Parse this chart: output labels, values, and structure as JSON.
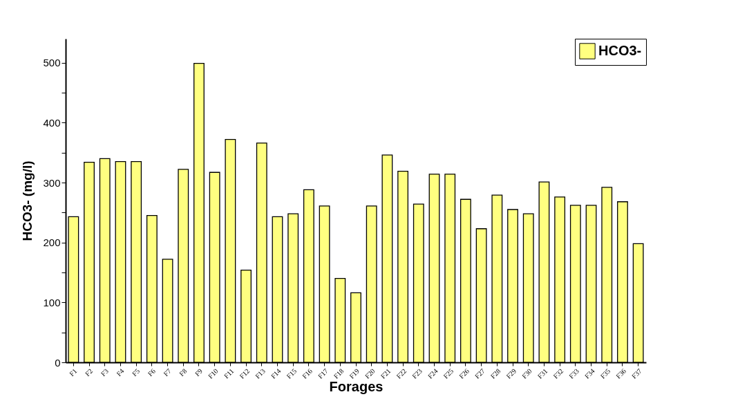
{
  "chart_data": {
    "type": "bar",
    "xlabel": "Forages",
    "ylabel": "HCO3- (mg/l)",
    "categories": [
      "F1",
      "F2",
      "F3",
      "F4",
      "F5",
      "F6",
      "F7",
      "F8",
      "F9",
      "F10",
      "F11",
      "F12",
      "F13",
      "F14",
      "F15",
      "F16",
      "F17",
      "F18",
      "F19",
      "F20",
      "F21",
      "F22",
      "F23",
      "F24",
      "F25",
      "F26",
      "F27",
      "F28",
      "F29",
      "F30",
      "F31",
      "F32",
      "F33",
      "F34",
      "F35",
      "F36",
      "F37"
    ],
    "series": [
      {
        "name": "HCO3-",
        "color": "#ffff80",
        "values": [
          243,
          334,
          340,
          335,
          335,
          245,
          172,
          322,
          499,
          317,
          372,
          154,
          366,
          243,
          248,
          288,
          261,
          140,
          116,
          261,
          346,
          319,
          264,
          314,
          314,
          272,
          223,
          279,
          255,
          248,
          301,
          276,
          262,
          262,
          292,
          268,
          198
        ]
      }
    ],
    "ylim": [
      0,
      540
    ],
    "yticks": [
      0,
      {
        "value": 50,
        "label": null
      },
      100,
      {
        "value": 150,
        "label": null
      },
      200,
      {
        "value": 250,
        "label": null
      },
      300,
      {
        "value": 350,
        "label": null
      },
      400,
      {
        "value": 450,
        "label": null
      },
      500
    ],
    "grid": false,
    "legend": "top right"
  }
}
